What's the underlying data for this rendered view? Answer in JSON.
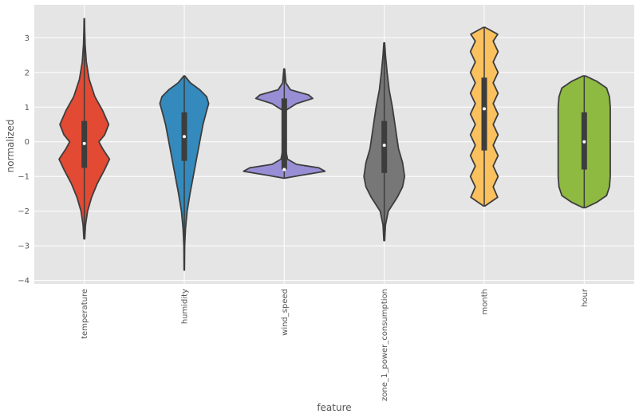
{
  "chart_data": {
    "type": "violin",
    "xlabel": "feature",
    "ylabel": "normalized",
    "ylim": [
      -4.1,
      3.95
    ],
    "yticks": [
      -4,
      -3,
      -2,
      -1,
      0,
      1,
      2,
      3
    ],
    "ytick_labels": [
      "−4",
      "−3",
      "−2",
      "−1",
      "0",
      "1",
      "2",
      "3"
    ],
    "grid": true,
    "background": "#e5e5e5",
    "grid_color": "#ffffff",
    "categories": [
      "temperature",
      "humidity",
      "wind_speed",
      "zone_1_power_consumption",
      "month",
      "hour"
    ],
    "series": [
      {
        "category": "temperature",
        "color": "#e24a33",
        "min": -2.8,
        "max": 3.55,
        "q1": -0.75,
        "q3": 0.6,
        "median": -0.05,
        "density": [
          [
            -2.8,
            0.01
          ],
          [
            -2.4,
            0.03
          ],
          [
            -2.0,
            0.08
          ],
          [
            -1.6,
            0.18
          ],
          [
            -1.2,
            0.32
          ],
          [
            -0.8,
            0.5
          ],
          [
            -0.5,
            0.62
          ],
          [
            -0.2,
            0.45
          ],
          [
            0.0,
            0.36
          ],
          [
            0.2,
            0.5
          ],
          [
            0.5,
            0.6
          ],
          [
            0.9,
            0.45
          ],
          [
            1.3,
            0.26
          ],
          [
            1.8,
            0.12
          ],
          [
            2.3,
            0.05
          ],
          [
            2.8,
            0.02
          ],
          [
            3.2,
            0.01
          ],
          [
            3.55,
            0.005
          ]
        ]
      },
      {
        "category": "humidity",
        "color": "#348abd",
        "min": -3.7,
        "max": 1.9,
        "q1": -0.55,
        "q3": 0.85,
        "median": 0.15,
        "density": [
          [
            -3.7,
            0.005
          ],
          [
            -3.0,
            0.01
          ],
          [
            -2.5,
            0.03
          ],
          [
            -2.0,
            0.07
          ],
          [
            -1.5,
            0.14
          ],
          [
            -1.0,
            0.22
          ],
          [
            -0.5,
            0.3
          ],
          [
            0.0,
            0.38
          ],
          [
            0.5,
            0.46
          ],
          [
            0.9,
            0.55
          ],
          [
            1.1,
            0.6
          ],
          [
            1.3,
            0.55
          ],
          [
            1.5,
            0.38
          ],
          [
            1.7,
            0.15
          ],
          [
            1.9,
            0.01
          ]
        ]
      },
      {
        "category": "wind_speed",
        "color": "#988ed5",
        "min": -1.05,
        "max": 2.1,
        "q1": -0.8,
        "q3": 1.25,
        "median": -0.8,
        "density": [
          [
            -1.05,
            0.01
          ],
          [
            -0.95,
            0.5
          ],
          [
            -0.85,
            1.0
          ],
          [
            -0.75,
            0.85
          ],
          [
            -0.65,
            0.3
          ],
          [
            -0.5,
            0.08
          ],
          [
            -0.2,
            0.03
          ],
          [
            0.2,
            0.02
          ],
          [
            0.6,
            0.02
          ],
          [
            0.9,
            0.03
          ],
          [
            1.1,
            0.3
          ],
          [
            1.25,
            0.7
          ],
          [
            1.35,
            0.6
          ],
          [
            1.5,
            0.15
          ],
          [
            1.7,
            0.04
          ],
          [
            2.1,
            0.01
          ]
        ]
      },
      {
        "category": "zone_1_power_consumption",
        "color": "#777777",
        "min": -2.85,
        "max": 2.85,
        "q1": -0.9,
        "q3": 0.6,
        "median": -0.1,
        "density": [
          [
            -2.85,
            0.01
          ],
          [
            -2.4,
            0.03
          ],
          [
            -2.0,
            0.1
          ],
          [
            -1.6,
            0.32
          ],
          [
            -1.3,
            0.45
          ],
          [
            -1.0,
            0.5
          ],
          [
            -0.6,
            0.45
          ],
          [
            -0.2,
            0.35
          ],
          [
            0.2,
            0.3
          ],
          [
            0.6,
            0.25
          ],
          [
            1.0,
            0.2
          ],
          [
            1.5,
            0.12
          ],
          [
            2.0,
            0.07
          ],
          [
            2.5,
            0.03
          ],
          [
            2.85,
            0.01
          ]
        ]
      },
      {
        "category": "month",
        "color": "#fbc15e",
        "min": -1.85,
        "max": 3.3,
        "q1": -0.25,
        "q3": 1.85,
        "median": 0.95,
        "density": [
          [
            -1.85,
            0.02
          ],
          [
            -1.6,
            0.33
          ],
          [
            -1.3,
            0.22
          ],
          [
            -1.0,
            0.34
          ],
          [
            -0.7,
            0.22
          ],
          [
            -0.4,
            0.34
          ],
          [
            -0.1,
            0.22
          ],
          [
            0.2,
            0.34
          ],
          [
            0.5,
            0.22
          ],
          [
            0.8,
            0.34
          ],
          [
            1.1,
            0.22
          ],
          [
            1.4,
            0.34
          ],
          [
            1.7,
            0.22
          ],
          [
            2.0,
            0.34
          ],
          [
            2.3,
            0.22
          ],
          [
            2.6,
            0.34
          ],
          [
            2.9,
            0.22
          ],
          [
            3.1,
            0.33
          ],
          [
            3.3,
            0.02
          ]
        ]
      },
      {
        "category": "hour",
        "color": "#8eba42",
        "min": -1.9,
        "max": 1.9,
        "q1": -0.8,
        "q3": 0.85,
        "median": 0.0,
        "density": [
          [
            -1.9,
            0.03
          ],
          [
            -1.75,
            0.3
          ],
          [
            -1.55,
            0.55
          ],
          [
            -1.3,
            0.62
          ],
          [
            -1.0,
            0.64
          ],
          [
            -0.5,
            0.64
          ],
          [
            0.0,
            0.64
          ],
          [
            0.5,
            0.64
          ],
          [
            1.0,
            0.64
          ],
          [
            1.3,
            0.62
          ],
          [
            1.55,
            0.55
          ],
          [
            1.75,
            0.3
          ],
          [
            1.9,
            0.03
          ]
        ]
      }
    ]
  }
}
